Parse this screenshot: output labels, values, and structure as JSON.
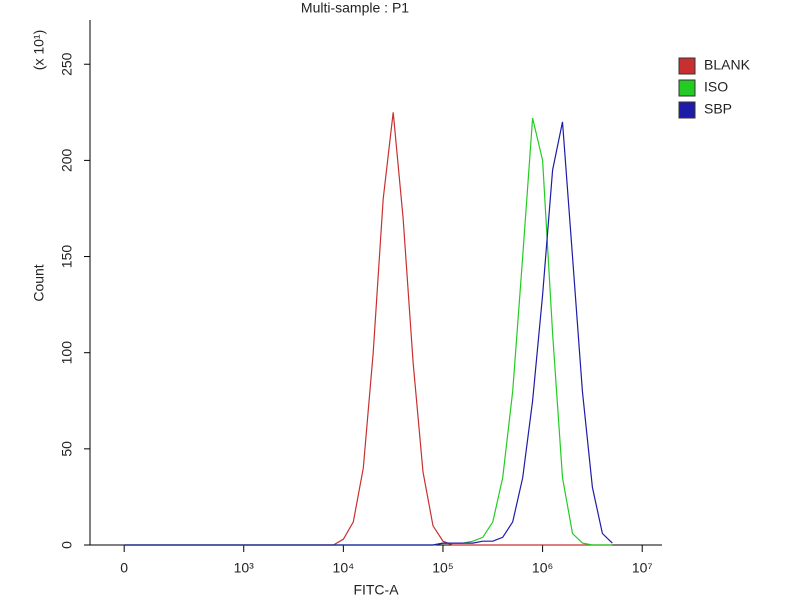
{
  "chart_data": {
    "type": "line",
    "title": "Multi-sample : P1",
    "x_label": "FITC-A",
    "y_label": "Count",
    "y_multiplier": "(x 10¹)",
    "xscale": "biexponential",
    "xlim": [
      -286,
      15800000
    ],
    "ylim": [
      0,
      273
    ],
    "xticks": [
      0,
      {
        "value": 1000,
        "label": "10³"
      },
      {
        "value": 10000,
        "label": "10⁴"
      },
      {
        "value": 100000,
        "label": "10⁵"
      },
      {
        "value": 1000000,
        "label": "10⁶"
      },
      {
        "value": 10000000,
        "label": "10⁷"
      }
    ],
    "yticks": [
      0,
      50,
      100,
      150,
      200,
      250
    ],
    "legend": "right",
    "x": [
      0,
      1000,
      6310,
      7943,
      10000,
      12589,
      15849,
      19953,
      25119,
      31623,
      39811,
      50119,
      63096,
      79433,
      100000,
      125893,
      158489,
      199526,
      251189,
      316228,
      398107,
      501187,
      630957,
      794328,
      1000000,
      1258925,
      1584893,
      1995262,
      2511886,
      3162278,
      3981072,
      5011872
    ],
    "series": [
      {
        "name": "BLANK",
        "color": "#c83030",
        "values": [
          0,
          0,
          0,
          0,
          3,
          12,
          40,
          100,
          180,
          225,
          170,
          95,
          38,
          10,
          2,
          0,
          0,
          0,
          0,
          0,
          0,
          0,
          0,
          0,
          0,
          0,
          0,
          0,
          0,
          0,
          0,
          0
        ]
      },
      {
        "name": "ISO",
        "color": "#22cc22",
        "values": [
          0,
          0,
          0,
          0,
          0,
          0,
          0,
          0,
          0,
          0,
          0,
          0,
          0,
          0,
          1,
          1,
          1,
          2,
          4,
          12,
          35,
          80,
          150,
          222,
          200,
          110,
          35,
          6,
          1,
          0,
          0,
          0
        ]
      },
      {
        "name": "SBP",
        "color": "#1c1ca8",
        "values": [
          0,
          0,
          0,
          0,
          0,
          0,
          0,
          0,
          0,
          0,
          0,
          0,
          0,
          0,
          1,
          1,
          1,
          1,
          2,
          2,
          4,
          12,
          35,
          75,
          130,
          195,
          220,
          150,
          80,
          30,
          6,
          1
        ]
      }
    ]
  }
}
